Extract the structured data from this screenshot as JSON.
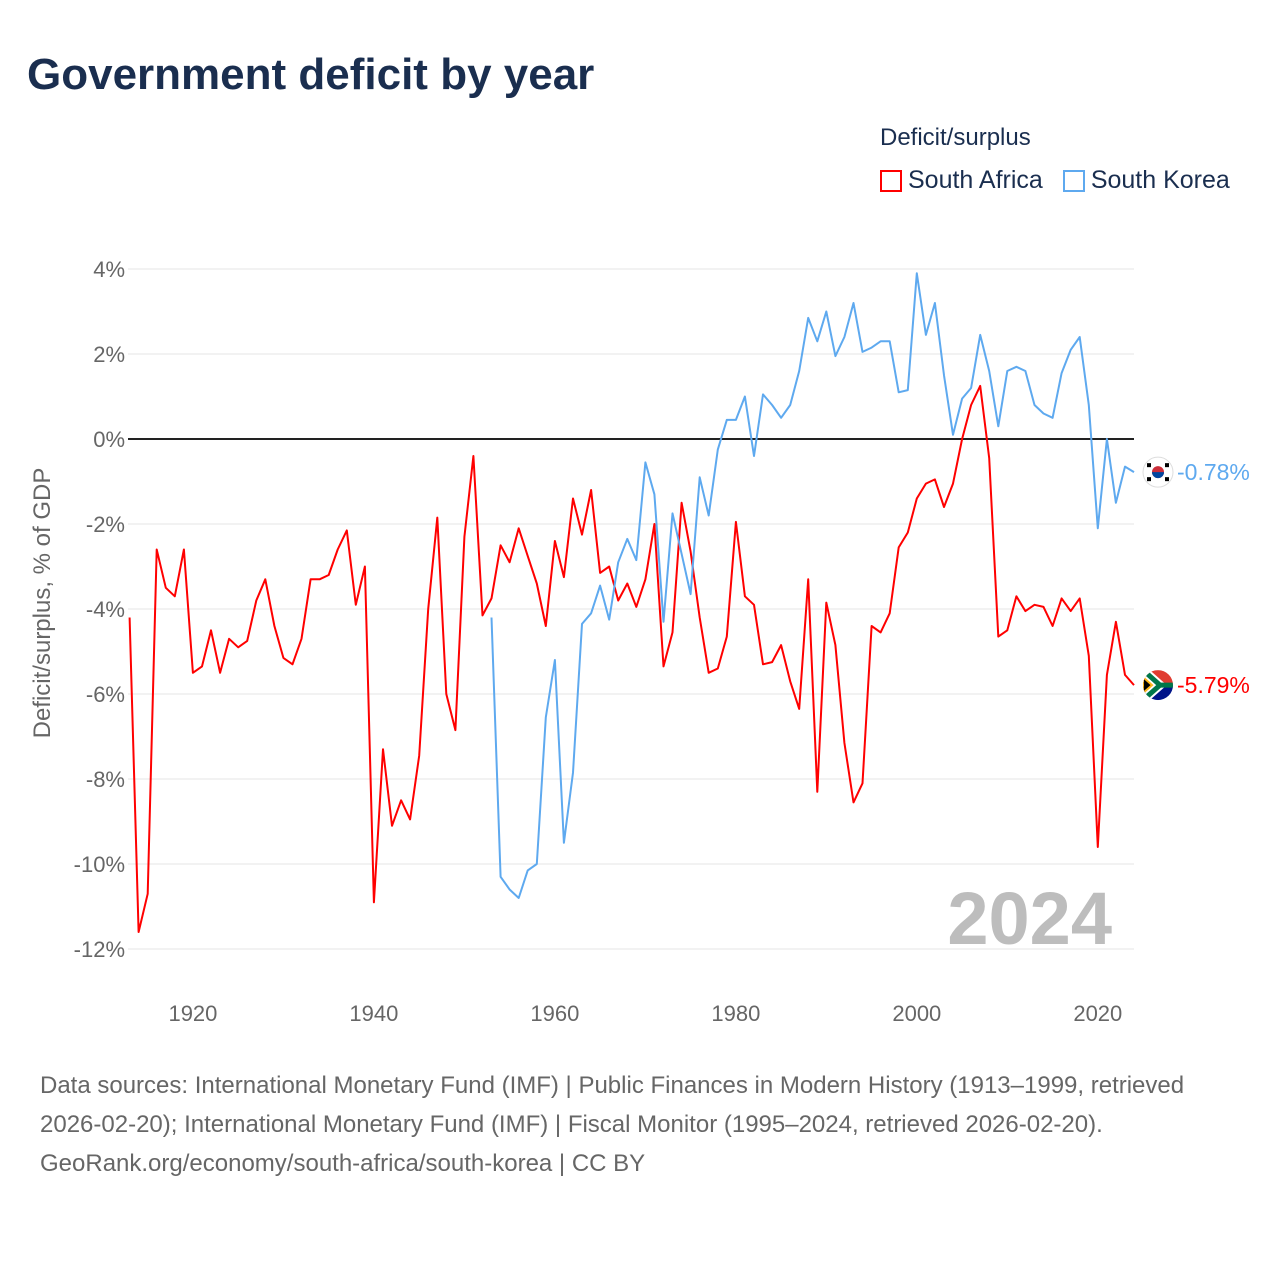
{
  "chart_data": {
    "type": "line",
    "title": "Government deficit by year",
    "xlabel": "",
    "ylabel": "Deficit/surplus, % of GDP",
    "xlim": [
      1913,
      2024
    ],
    "ylim": [
      -12,
      4
    ],
    "x_ticks": [
      1920,
      1940,
      1960,
      1980,
      2000,
      2020
    ],
    "x_tick_labels": [
      "1920",
      "1940",
      "1960",
      "1980",
      "2000",
      "2020"
    ],
    "y_ticks": [
      4,
      2,
      0,
      -2,
      -4,
      -6,
      -8,
      -10,
      -12
    ],
    "y_tick_labels": [
      "4%",
      "2%",
      "0%",
      "-2%",
      "-4%",
      "-6%",
      "-8%",
      "-10%",
      "-12%"
    ],
    "grid": true,
    "legend_title": "Deficit/surplus",
    "legend_position": "top-right",
    "year_label": "2024",
    "series": [
      {
        "name": "South Africa",
        "color": "#ff0000",
        "start_year": 1913,
        "end_label": "-5.79%",
        "flag": "south-africa-flag",
        "values": [
          -4.2,
          -11.6,
          -10.7,
          -2.6,
          -3.5,
          -3.7,
          -2.6,
          -5.5,
          -5.35,
          -4.5,
          -5.5,
          -4.7,
          -4.9,
          -4.75,
          -3.8,
          -3.3,
          -4.4,
          -5.15,
          -5.3,
          -4.7,
          -3.3,
          -3.3,
          -3.2,
          -2.6,
          -2.15,
          -3.9,
          -3.0,
          -10.9,
          -7.3,
          -9.1,
          -8.5,
          -8.95,
          -7.45,
          -4.0,
          -1.85,
          -6.0,
          -6.85,
          -2.3,
          -0.4,
          -4.15,
          -3.75,
          -2.5,
          -2.9,
          -2.1,
          -2.75,
          -3.4,
          -4.4,
          -2.4,
          -3.25,
          -1.4,
          -2.25,
          -1.2,
          -3.15,
          -3.0,
          -3.8,
          -3.4,
          -3.95,
          -3.3,
          -2.0,
          -5.35,
          -4.55,
          -1.5,
          -2.65,
          -4.2,
          -5.5,
          -5.4,
          -4.65,
          -1.95,
          -3.7,
          -3.9,
          -5.3,
          -5.25,
          -4.85,
          -5.7,
          -6.35,
          -3.3,
          -8.3,
          -3.85,
          -4.85,
          -7.15,
          -8.55,
          -8.1,
          -4.4,
          -4.55,
          -4.1,
          -2.55,
          -2.2,
          -1.4,
          -1.05,
          -0.95,
          -1.6,
          -1.05,
          0.0,
          0.8,
          1.25,
          -0.45,
          -4.65,
          -4.5,
          -3.7,
          -4.05,
          -3.9,
          -3.95,
          -4.4,
          -3.75,
          -4.05,
          -3.75,
          -5.1,
          -9.6,
          -5.55,
          -4.3,
          -5.55,
          -5.79
        ]
      },
      {
        "name": "South Korea",
        "color": "#5ea9ef",
        "start_year": 1953,
        "end_label": "-0.78%",
        "flag": "south-korea-flag",
        "values": [
          -4.2,
          -10.3,
          -10.6,
          -10.8,
          -10.15,
          -10.0,
          -6.55,
          -5.2,
          -9.5,
          -7.85,
          -4.35,
          -4.1,
          -3.45,
          -4.25,
          -2.9,
          -2.35,
          -2.85,
          -0.55,
          -1.3,
          -4.3,
          -1.75,
          -2.7,
          -3.65,
          -0.9,
          -1.8,
          -0.25,
          0.45,
          0.45,
          1.0,
          -0.4,
          1.05,
          0.8,
          0.5,
          0.8,
          1.6,
          2.85,
          2.3,
          3.0,
          1.95,
          2.4,
          3.2,
          2.05,
          2.15,
          2.3,
          2.3,
          1.1,
          1.15,
          3.9,
          2.45,
          3.2,
          1.5,
          0.1,
          0.95,
          1.2,
          2.45,
          1.6,
          0.3,
          1.6,
          1.7,
          1.6,
          0.8,
          0.6,
          0.5,
          1.55,
          2.1,
          2.4,
          0.8,
          -2.1,
          0.0,
          -1.5,
          -0.65,
          -0.78
        ]
      }
    ]
  },
  "footer": {
    "sources": "Data sources: International Monetary Fund (IMF) | Public Finances in Modern History (1913–1999, retrieved 2026-02-20); International Monetary Fund (IMF) | Fiscal Monitor (1995–2024, retrieved 2026-02-20).",
    "link": "GeoRank.org/economy/south-africa/south-korea",
    "license": " | CC BY"
  }
}
